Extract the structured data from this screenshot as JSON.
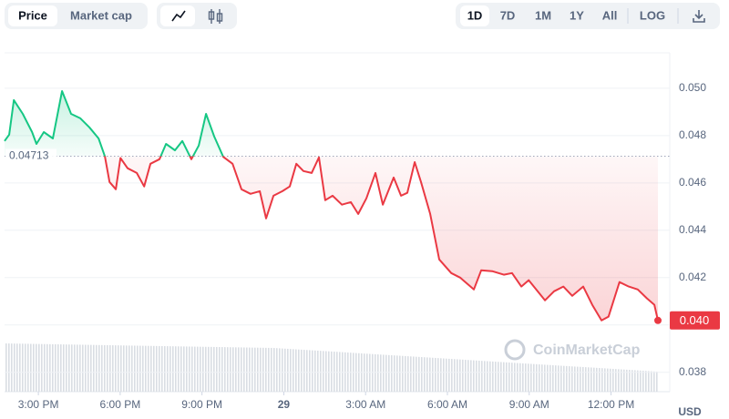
{
  "toolbar": {
    "tabs": [
      "Price",
      "Market cap"
    ],
    "ranges": [
      "1D",
      "7D",
      "1M",
      "1Y",
      "All"
    ],
    "scale": "LOG"
  },
  "chart_data": {
    "type": "line",
    "up_color": "#16c784",
    "down_color": "#ea3943",
    "reference_price": 0.04713,
    "current_price_label": "0.040",
    "y_unit": "USD",
    "watermark": "CoinMarketCap",
    "grid": true,
    "xlim": [
      13.76,
      37.72
    ],
    "xticks": [
      {
        "value": 15,
        "label": "3:00 PM"
      },
      {
        "value": 18,
        "label": "6:00 PM"
      },
      {
        "value": 21,
        "label": "9:00 PM"
      },
      {
        "value": 24,
        "label": "29"
      },
      {
        "value": 27,
        "label": "3:00 AM"
      },
      {
        "value": 30,
        "label": "6:00 AM"
      },
      {
        "value": 33,
        "label": "9:00 AM"
      },
      {
        "value": 36,
        "label": "12:00 PM"
      }
    ],
    "ylim": [
      0.03718,
      0.05142
    ],
    "yticks": [
      {
        "value": 0.038,
        "label": "0.038"
      },
      {
        "value": 0.04,
        "label": "0.040"
      },
      {
        "value": 0.042,
        "label": "0.042"
      },
      {
        "value": 0.044,
        "label": "0.044"
      },
      {
        "value": 0.046,
        "label": "0.046"
      },
      {
        "value": 0.048,
        "label": "0.048"
      },
      {
        "value": 0.05,
        "label": "0.050"
      }
    ],
    "x": [
      13.76,
      13.93,
      14.1,
      14.43,
      14.77,
      14.93,
      15.2,
      15.53,
      15.87,
      16.2,
      16.54,
      16.87,
      17.21,
      17.44,
      17.61,
      17.84,
      18.01,
      18.27,
      18.61,
      18.88,
      19.11,
      19.44,
      19.68,
      20.01,
      20.28,
      20.61,
      20.88,
      21.15,
      21.45,
      21.78,
      22.12,
      22.45,
      22.78,
      23.12,
      23.35,
      23.62,
      23.95,
      24.22,
      24.46,
      24.72,
      25.02,
      25.29,
      25.52,
      25.79,
      26.13,
      26.46,
      26.73,
      27.03,
      27.36,
      27.63,
      28.03,
      28.3,
      28.53,
      28.8,
      29.03,
      29.37,
      29.7,
      30.14,
      30.47,
      30.97,
      31.24,
      31.64,
      32.07,
      32.37,
      32.71,
      32.98,
      33.31,
      33.58,
      33.91,
      34.25,
      34.58,
      34.98,
      35.31,
      35.65,
      35.91,
      36.31,
      36.65,
      36.98,
      37.32,
      37.59,
      37.72
    ],
    "values": [
      0.04777,
      0.04804,
      0.0495,
      0.04892,
      0.04815,
      0.04765,
      0.04815,
      0.04788,
      0.04988,
      0.04892,
      0.04873,
      0.04835,
      0.04788,
      0.04712,
      0.04604,
      0.04573,
      0.04705,
      0.04662,
      0.04642,
      0.04585,
      0.04681,
      0.047,
      0.04765,
      0.04738,
      0.04777,
      0.047,
      0.04758,
      0.04892,
      0.04796,
      0.0471,
      0.04681,
      0.04573,
      0.04554,
      0.04565,
      0.0445,
      0.04546,
      0.04565,
      0.04585,
      0.04681,
      0.0465,
      0.04642,
      0.04708,
      0.04527,
      0.04546,
      0.04508,
      0.04519,
      0.04469,
      0.04535,
      0.04642,
      0.04508,
      0.04623,
      0.04546,
      0.04558,
      0.04688,
      0.04604,
      0.04469,
      0.04277,
      0.04219,
      0.042,
      0.0415,
      0.04231,
      0.04227,
      0.04212,
      0.04219,
      0.04162,
      0.04189,
      0.04142,
      0.04104,
      0.04142,
      0.04162,
      0.04123,
      0.04162,
      0.04085,
      0.04019,
      0.04035,
      0.04181,
      0.04162,
      0.0415,
      0.04112,
      0.04085,
      0.04019
    ]
  }
}
